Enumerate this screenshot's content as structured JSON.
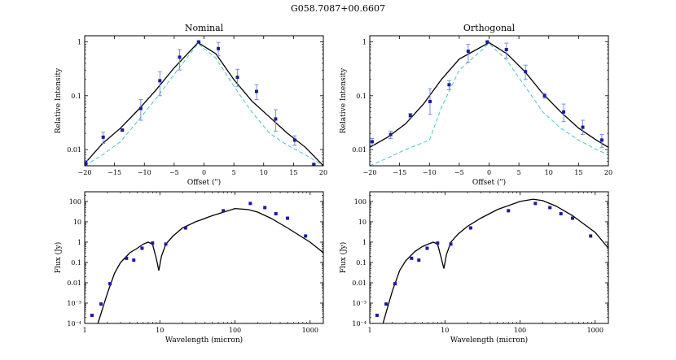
{
  "figure_title": "G058.7087+00.6607",
  "colors": {
    "model": "#000000",
    "beam": "#4fc3c8",
    "data_marker": "#1a1aa0",
    "error_bar": "#6f86d6"
  },
  "chart_data": [
    {
      "id": "nominal",
      "type": "scatter",
      "title": "Nominal",
      "xlabel": "Offset (\")",
      "ylabel": "Relative Intensity",
      "xscale": "linear",
      "yscale": "log",
      "xlim": [
        -20,
        20
      ],
      "ylim": [
        0.005,
        1.3
      ],
      "xticks": [
        -20,
        -15,
        -10,
        -5,
        0,
        5,
        10,
        15,
        20
      ],
      "xtick_labels": [
        "−20",
        "−15",
        "−10",
        "−5",
        "0",
        "5",
        "10",
        "15",
        "20"
      ],
      "yticks": [
        0.01,
        0.1,
        1
      ],
      "ytick_labels": [
        "0.01",
        "0.1",
        "1"
      ],
      "points": {
        "x": [
          -19.8,
          -16.9,
          -13.7,
          -10.6,
          -7.4,
          -4.1,
          -0.9,
          2.4,
          5.6,
          8.8,
          12.0,
          15.2,
          18.4
        ],
        "y": [
          0.0055,
          0.017,
          0.023,
          0.058,
          0.19,
          0.52,
          1.0,
          0.75,
          0.22,
          0.12,
          0.037,
          0.015,
          0.0053
        ],
        "yerr_low": [
          0.0048,
          0.013,
          0.022,
          0.035,
          0.1,
          0.3,
          0.97,
          0.55,
          0.15,
          0.085,
          0.022,
          0.012,
          0.0052
        ],
        "yerr_high": [
          0.0063,
          0.021,
          0.024,
          0.085,
          0.28,
          0.72,
          1.03,
          0.98,
          0.31,
          0.16,
          0.055,
          0.018,
          0.0054
        ]
      },
      "model_line": {
        "x": [
          -20,
          -17,
          -14,
          -11,
          -8,
          -5,
          -1,
          2,
          5,
          8,
          11,
          14,
          17,
          20
        ],
        "y": [
          0.0055,
          0.013,
          0.025,
          0.055,
          0.13,
          0.33,
          0.97,
          0.6,
          0.2,
          0.08,
          0.04,
          0.02,
          0.011,
          0.005
        ]
      },
      "beam_line": {
        "x": [
          -20,
          -17,
          -14,
          -11,
          -8,
          -5,
          -1,
          2,
          5,
          8,
          11,
          14,
          17,
          20
        ],
        "y": [
          0.005,
          0.008,
          0.014,
          0.035,
          0.09,
          0.25,
          0.93,
          0.5,
          0.15,
          0.05,
          0.02,
          0.012,
          0.008,
          0.005
        ]
      }
    },
    {
      "id": "orthogonal",
      "type": "scatter",
      "title": "Orthogonal",
      "xlabel": "Offset (\")",
      "ylabel": "Relative Intensity",
      "xscale": "linear",
      "yscale": "log",
      "xlim": [
        -20,
        20
      ],
      "ylim": [
        0.005,
        1.3
      ],
      "xticks": [
        -20,
        -15,
        -10,
        -5,
        0,
        5,
        10,
        15,
        20
      ],
      "xtick_labels": [
        "−20",
        "−15",
        "−10",
        "−5",
        "0",
        "5",
        "10",
        "15",
        "20"
      ],
      "yticks": [
        0.01,
        0.1,
        1
      ],
      "ytick_labels": [
        "0.01",
        "0.1",
        "1"
      ],
      "points": {
        "x": [
          -19.6,
          -16.5,
          -13.2,
          -9.9,
          -6.7,
          -3.5,
          -0.3,
          2.9,
          6.1,
          9.3,
          12.5,
          15.7,
          18.9
        ],
        "y": [
          0.014,
          0.019,
          0.043,
          0.078,
          0.16,
          0.67,
          1.0,
          0.72,
          0.28,
          0.1,
          0.05,
          0.026,
          0.015
        ],
        "yerr_low": [
          0.012,
          0.016,
          0.039,
          0.045,
          0.13,
          0.42,
          0.98,
          0.5,
          0.2,
          0.09,
          0.033,
          0.019,
          0.011
        ],
        "yerr_high": [
          0.016,
          0.022,
          0.047,
          0.135,
          0.19,
          0.9,
          1.02,
          0.95,
          0.37,
          0.11,
          0.07,
          0.035,
          0.019
        ]
      },
      "model_line": {
        "x": [
          -20,
          -17,
          -14,
          -11,
          -8,
          -5,
          0,
          3,
          6,
          9,
          12,
          15,
          18,
          20
        ],
        "y": [
          0.011,
          0.017,
          0.03,
          0.07,
          0.2,
          0.48,
          0.97,
          0.6,
          0.28,
          0.11,
          0.05,
          0.025,
          0.015,
          0.011
        ]
      },
      "beam_line": {
        "x": [
          -20,
          -17,
          -14,
          -10,
          -8,
          -5,
          0,
          3,
          6,
          9,
          12,
          15,
          18,
          20
        ],
        "y": [
          0.005,
          0.007,
          0.01,
          0.015,
          0.06,
          0.3,
          0.93,
          0.45,
          0.15,
          0.05,
          0.025,
          0.015,
          0.01,
          0.008
        ]
      }
    },
    {
      "id": "sed-nominal",
      "type": "scatter",
      "title": "",
      "xlabel": "Wavelength (micron)",
      "ylabel": "Flux (Jy)",
      "xscale": "log",
      "yscale": "log",
      "xlim": [
        1,
        1500
      ],
      "ylim": [
        0.0001,
        300
      ],
      "xticks": [
        1,
        10,
        100,
        1000
      ],
      "xtick_labels": [
        "1",
        "10",
        "100",
        "1000"
      ],
      "yticks": [
        0.0001,
        0.001,
        0.01,
        0.1,
        1,
        10,
        100
      ],
      "ytick_labels": [
        "10⁻⁴",
        "10⁻³",
        "0.01",
        "0.1",
        "1",
        "10",
        "100"
      ],
      "points": {
        "x": [
          1.25,
          1.65,
          2.17,
          3.6,
          4.5,
          5.8,
          8.0,
          12,
          22,
          70,
          160,
          250,
          350,
          500,
          870
        ],
        "y": [
          0.00025,
          0.0009,
          0.009,
          0.16,
          0.13,
          0.5,
          0.9,
          0.8,
          5.0,
          35,
          80,
          50,
          25,
          15,
          2.0
        ]
      },
      "model_line": {
        "x": [
          1.5,
          2.0,
          2.5,
          3.0,
          4.0,
          5.0,
          6.0,
          7.0,
          8.0,
          9.0,
          9.7,
          10.5,
          12,
          15,
          20,
          30,
          50,
          100,
          150,
          200,
          300,
          500,
          1000,
          1500
        ],
        "y": [
          0.0001,
          0.003,
          0.03,
          0.1,
          0.3,
          0.5,
          0.8,
          1.0,
          0.8,
          0.15,
          0.04,
          0.2,
          0.8,
          2.0,
          5.0,
          10,
          20,
          45,
          40,
          30,
          15,
          5,
          1,
          0.3
        ]
      }
    },
    {
      "id": "sed-orthogonal",
      "type": "scatter",
      "title": "",
      "xlabel": "Wavelength (micron)",
      "ylabel": "Flux (Jy)",
      "xscale": "log",
      "yscale": "log",
      "xlim": [
        1,
        1500
      ],
      "ylim": [
        0.0001,
        300
      ],
      "xticks": [
        1,
        10,
        100,
        1000
      ],
      "xtick_labels": [
        "1",
        "10",
        "100",
        "1000"
      ],
      "yticks": [
        0.0001,
        0.001,
        0.01,
        0.1,
        1,
        10,
        100
      ],
      "ytick_labels": [
        "10⁻⁴",
        "10⁻³",
        "0.01",
        "0.1",
        "1",
        "10",
        "100"
      ],
      "points": {
        "x": [
          1.25,
          1.65,
          2.17,
          3.6,
          4.5,
          5.8,
          8.0,
          12,
          22,
          70,
          160,
          250,
          350,
          500,
          870
        ],
        "y": [
          0.00025,
          0.0009,
          0.009,
          0.16,
          0.13,
          0.5,
          0.9,
          0.8,
          5.0,
          35,
          80,
          50,
          25,
          15,
          2.0
        ]
      },
      "model_line": {
        "x": [
          1.5,
          2.0,
          2.5,
          3.0,
          4.0,
          5.0,
          6.0,
          7.0,
          8.0,
          9.0,
          9.7,
          10.5,
          12,
          15,
          20,
          30,
          50,
          100,
          150,
          200,
          300,
          500,
          1000,
          1500
        ],
        "y": [
          0.0001,
          0.004,
          0.04,
          0.12,
          0.35,
          0.6,
          0.8,
          1.0,
          0.8,
          0.15,
          0.05,
          0.25,
          1.0,
          2.5,
          6,
          15,
          40,
          100,
          130,
          110,
          60,
          20,
          3,
          0.5
        ]
      }
    }
  ]
}
